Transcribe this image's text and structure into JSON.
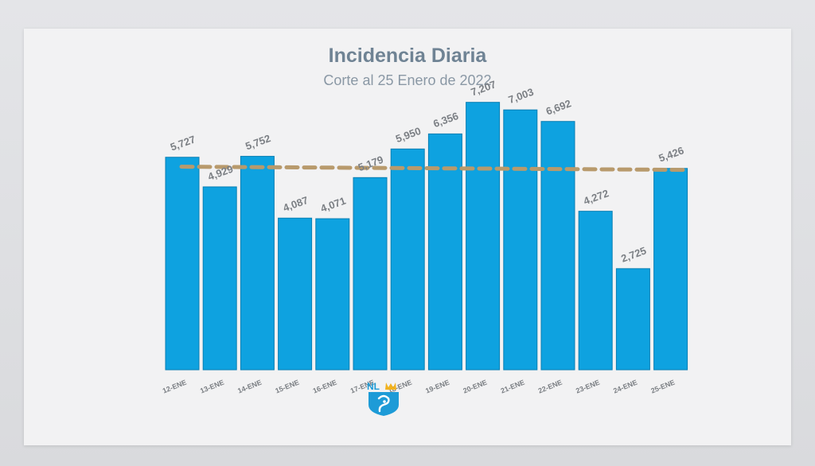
{
  "chart_data": {
    "type": "bar",
    "title": "Incidencia Diaria",
    "subtitle": "Corte al 25 Enero de 2022",
    "categories": [
      "12-ENE",
      "13-ENE",
      "14-ENE",
      "15-ENE",
      "16-ENE",
      "17-ENE",
      "18-ENE",
      "19-ENE",
      "20-ENE",
      "21-ENE",
      "22-ENE",
      "23-ENE",
      "24-ENE",
      "25-ENE"
    ],
    "values": [
      5727,
      4929,
      5752,
      4087,
      4071,
      5179,
      5950,
      6356,
      7207,
      7003,
      6692,
      4272,
      2725,
      5426
    ],
    "labels": [
      "5,727",
      "4,929",
      "5,752",
      "4,087",
      "4,071",
      "5,179",
      "5,950",
      "6,356",
      "7,207",
      "7,003",
      "6,692",
      "4,272",
      "2,725",
      "5,426"
    ],
    "average_line": 5430,
    "ylim": [
      0,
      7500
    ],
    "grid": false,
    "legend": "none",
    "colors": {
      "bar": "#0ea2e0",
      "bar_edge": "#0a7fb3",
      "average_line": "#b89a6c",
      "label": "#7b7f84",
      "title": "#6f8394",
      "subtitle": "#8a98a5"
    }
  },
  "logo": {
    "text": "NL"
  }
}
